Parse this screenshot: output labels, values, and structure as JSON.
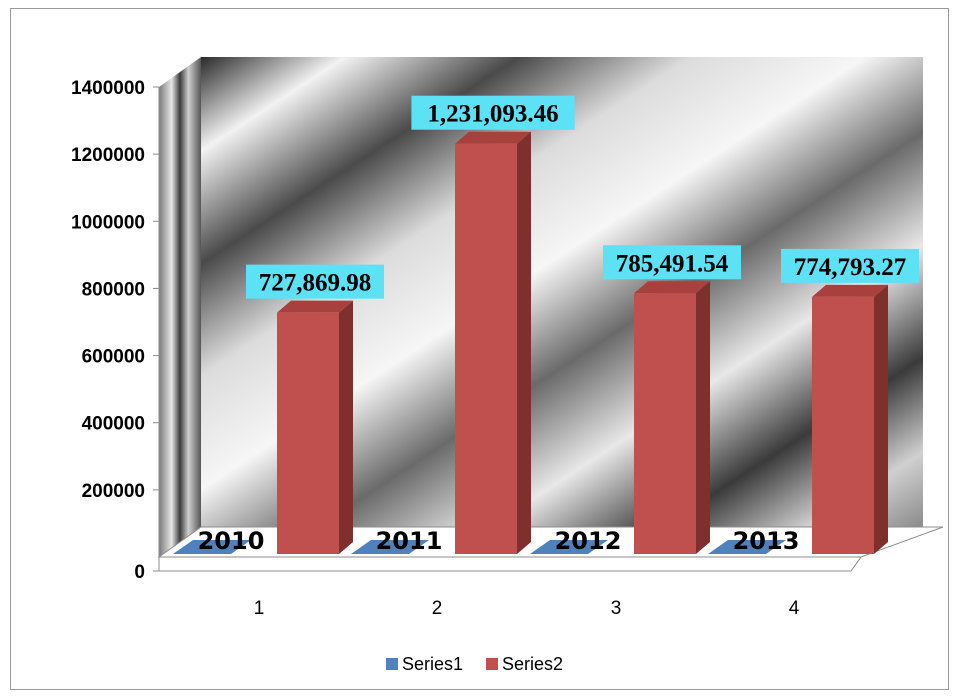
{
  "chart_data": {
    "type": "bar",
    "style": "3d-clustered-column",
    "categories": [
      "1",
      "2",
      "3",
      "4"
    ],
    "series": [
      {
        "name": "Series1",
        "color": "#4f81bd",
        "values": [
          2010,
          2011,
          2012,
          2013
        ]
      },
      {
        "name": "Series2",
        "color": "#c0504d",
        "values": [
          727869.98,
          1231093.46,
          785491.54,
          774793.27
        ]
      }
    ],
    "series1_labels": [
      "2010",
      "2011",
      "2012",
      "2013"
    ],
    "series2_labels": [
      "727,869.98",
      "1,231,093.46",
      "785,491.54",
      "774,793.27"
    ],
    "data_label_fill": "#5ce1f5",
    "y_ticks": [
      "0",
      "200000",
      "400000",
      "600000",
      "800000",
      "1000000",
      "1200000",
      "1400000"
    ],
    "ylim": [
      0,
      1400000
    ],
    "grid": false,
    "legend": "bottom",
    "back_wall": "gradient-metal"
  }
}
